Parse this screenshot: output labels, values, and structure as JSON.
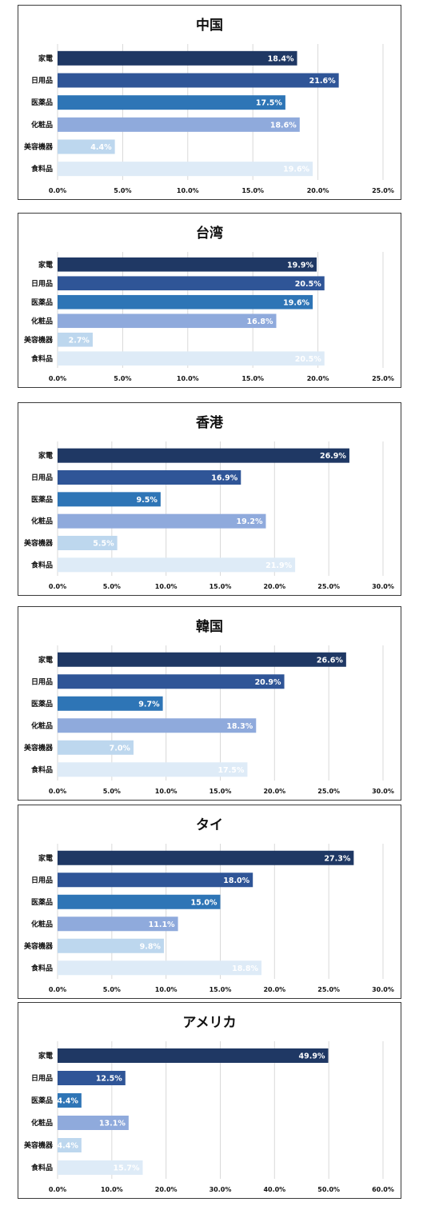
{
  "colors": [
    "#1f3864",
    "#2f5597",
    "#2e75b6",
    "#8faadc",
    "#bdd7ee",
    "#deebf7"
  ],
  "chart_data": [
    {
      "type": "bar",
      "title": "中国",
      "categories": [
        "家電",
        "日用品",
        "医薬品",
        "化粧品",
        "美容機器",
        "食料品"
      ],
      "values": [
        18.4,
        21.6,
        17.5,
        18.6,
        4.4,
        19.6
      ],
      "value_labels": [
        "18.4%",
        "21.6%",
        "17.5%",
        "18.6%",
        "4.4%",
        "19.6%"
      ],
      "xlim": [
        0,
        25
      ],
      "ticks": [
        0,
        5,
        10,
        15,
        20,
        25
      ],
      "tick_labels": [
        "0.0%",
        "5.0%",
        "10.0%",
        "15.0%",
        "20.0%",
        "25.0%"
      ],
      "grid": true
    },
    {
      "type": "bar",
      "title": "台湾",
      "categories": [
        "家電",
        "日用品",
        "医薬品",
        "化粧品",
        "美容機器",
        "食料品"
      ],
      "values": [
        19.9,
        20.5,
        19.6,
        16.8,
        2.7,
        20.5
      ],
      "value_labels": [
        "19.9%",
        "20.5%",
        "19.6%",
        "16.8%",
        "2.7%",
        "20.5%"
      ],
      "xlim": [
        0,
        25
      ],
      "ticks": [
        0,
        5,
        10,
        15,
        20,
        25
      ],
      "tick_labels": [
        "0.0%",
        "5.0%",
        "10.0%",
        "15.0%",
        "20.0%",
        "25.0%"
      ],
      "grid": true
    },
    {
      "type": "bar",
      "title": "香港",
      "categories": [
        "家電",
        "日用品",
        "医薬品",
        "化粧品",
        "美容機器",
        "食料品"
      ],
      "values": [
        26.9,
        16.9,
        9.5,
        19.2,
        5.5,
        21.9
      ],
      "value_labels": [
        "26.9%",
        "16.9%",
        "9.5%",
        "19.2%",
        "5.5%",
        "21.9%"
      ],
      "xlim": [
        0,
        30
      ],
      "ticks": [
        0,
        5,
        10,
        15,
        20,
        25,
        30
      ],
      "tick_labels": [
        "0.0%",
        "5.0%",
        "10.0%",
        "15.0%",
        "20.0%",
        "25.0%",
        "30.0%"
      ],
      "grid": true
    },
    {
      "type": "bar",
      "title": "韓国",
      "categories": [
        "家電",
        "日用品",
        "医薬品",
        "化粧品",
        "美容機器",
        "食料品"
      ],
      "values": [
        26.6,
        20.9,
        9.7,
        18.3,
        7.0,
        17.5
      ],
      "value_labels": [
        "26.6%",
        "20.9%",
        "9.7%",
        "18.3%",
        "7.0%",
        "17.5%"
      ],
      "xlim": [
        0,
        30
      ],
      "ticks": [
        0,
        5,
        10,
        15,
        20,
        25,
        30
      ],
      "tick_labels": [
        "0.0%",
        "5.0%",
        "10.0%",
        "15.0%",
        "20.0%",
        "25.0%",
        "30.0%"
      ],
      "grid": true
    },
    {
      "type": "bar",
      "title": "タイ",
      "categories": [
        "家電",
        "日用品",
        "医薬品",
        "化粧品",
        "美容機器",
        "食料品"
      ],
      "values": [
        27.3,
        18.0,
        15.0,
        11.1,
        9.8,
        18.8
      ],
      "value_labels": [
        "27.3%",
        "18.0%",
        "15.0%",
        "11.1%",
        "9.8%",
        "18.8%"
      ],
      "xlim": [
        0,
        30
      ],
      "ticks": [
        0,
        5,
        10,
        15,
        20,
        25,
        30
      ],
      "tick_labels": [
        "0.0%",
        "5.0%",
        "10.0%",
        "15.0%",
        "20.0%",
        "25.0%",
        "30.0%"
      ],
      "grid": true
    },
    {
      "type": "bar",
      "title": "アメリカ",
      "categories": [
        "家電",
        "日用品",
        "医薬品",
        "化粧品",
        "美容機器",
        "食料品"
      ],
      "values": [
        49.9,
        12.5,
        4.4,
        13.1,
        4.4,
        15.7
      ],
      "value_labels": [
        "49.9%",
        "12.5%",
        "4.4%",
        "13.1%",
        "4.4%",
        "15.7%"
      ],
      "xlim": [
        0,
        60
      ],
      "ticks": [
        0,
        10,
        20,
        30,
        40,
        50,
        60
      ],
      "tick_labels": [
        "0.0%",
        "10.0%",
        "20.0%",
        "30.0%",
        "40.0%",
        "50.0%",
        "60.0%"
      ],
      "grid": true
    }
  ]
}
